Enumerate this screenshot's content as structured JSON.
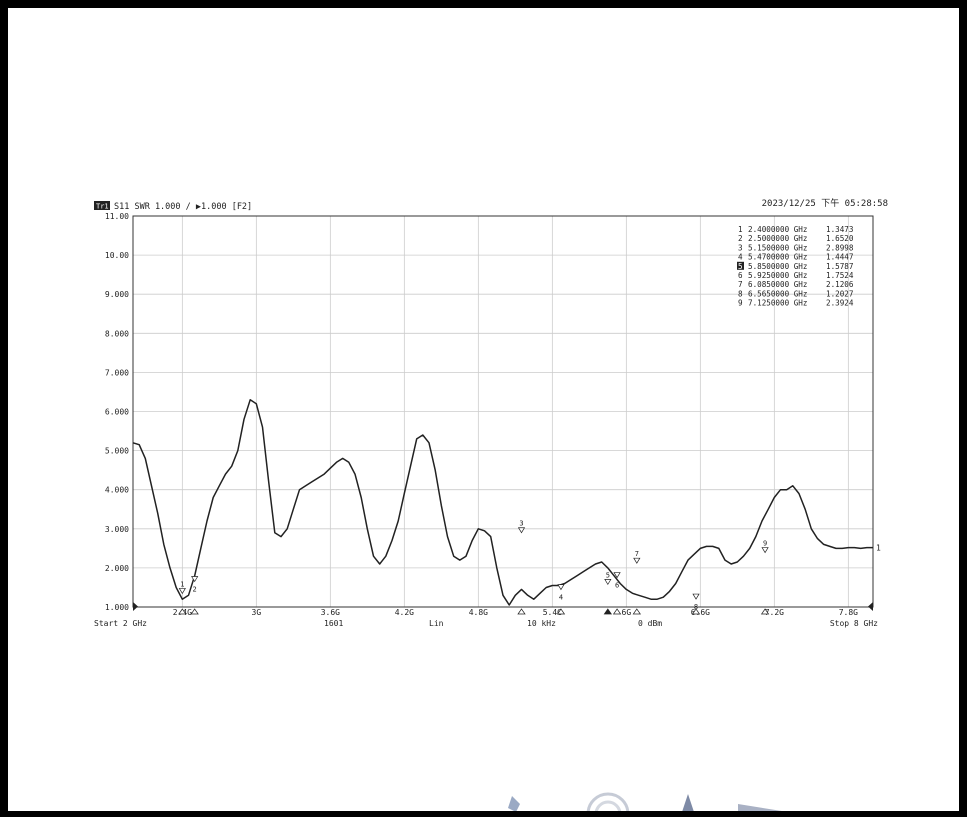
{
  "timestamp": "2023/12/25 下午 05:28:58",
  "header": {
    "trace_badge": "Tr1",
    "text": "S11  SWR 1.000 / ▶1.000  [F2]"
  },
  "footer": {
    "start": "Start 2 GHz",
    "points": "1601",
    "scale": "Lin",
    "ifbw": "10 kHz",
    "power": "0 dBm",
    "stop": "Stop 8 GHz"
  },
  "chart_data": {
    "type": "line",
    "ylim": [
      1.0,
      11.0
    ],
    "xlim": [
      2.0,
      8.0
    ],
    "grid": true,
    "ytick_values": [
      11,
      10,
      9,
      8,
      7,
      6,
      5,
      4,
      3,
      2,
      1
    ],
    "ytick_labels": [
      "11.00",
      "10.00",
      "9.000",
      "8.000",
      "7.000",
      "6.000",
      "5.000",
      "4.000",
      "3.000",
      "2.000",
      "1.000"
    ],
    "xtick_values": [
      2.4,
      3.0,
      3.6,
      4.2,
      4.8,
      5.4,
      6.0,
      6.6,
      7.2,
      7.8
    ],
    "xtick_labels": [
      "2.4G",
      "3G",
      "3.6G",
      "4.2G",
      "4.8G",
      "5.4G",
      "6G",
      "6.6G",
      "7.2G",
      "7.8G"
    ],
    "series": [
      {
        "x": [
          2.0,
          2.05,
          2.1,
          2.15,
          2.2,
          2.25,
          2.3,
          2.35,
          2.4,
          2.45,
          2.5,
          2.55,
          2.6,
          2.65,
          2.7,
          2.75,
          2.8,
          2.85,
          2.9,
          2.95,
          3.0,
          3.05,
          3.1,
          3.15,
          3.2,
          3.25,
          3.3,
          3.35,
          3.4,
          3.45,
          3.5,
          3.55,
          3.6,
          3.65,
          3.7,
          3.75,
          3.8,
          3.85,
          3.9,
          3.95,
          4.0,
          4.05,
          4.1,
          4.15,
          4.2,
          4.25,
          4.3,
          4.35,
          4.4,
          4.45,
          4.5,
          4.55,
          4.6,
          4.65,
          4.7,
          4.75,
          4.8,
          4.85,
          4.9,
          4.95,
          5.0,
          5.05,
          5.1,
          5.15,
          5.2,
          5.25,
          5.3,
          5.35,
          5.4,
          5.45,
          5.5,
          5.55,
          5.6,
          5.65,
          5.7,
          5.75,
          5.8,
          5.85,
          5.9,
          5.95,
          6.0,
          6.05,
          6.1,
          6.15,
          6.2,
          6.25,
          6.3,
          6.35,
          6.4,
          6.45,
          6.5,
          6.55,
          6.6,
          6.65,
          6.7,
          6.75,
          6.8,
          6.85,
          6.9,
          6.95,
          7.0,
          7.05,
          7.1,
          7.15,
          7.2,
          7.25,
          7.3,
          7.35,
          7.4,
          7.45,
          7.5,
          7.55,
          7.6,
          7.65,
          7.7,
          7.75,
          7.8,
          7.85,
          7.9,
          7.95,
          8.0
        ],
        "values": [
          5.2,
          5.15,
          4.8,
          4.1,
          3.4,
          2.6,
          2.0,
          1.5,
          1.2,
          1.3,
          1.8,
          2.5,
          3.2,
          3.8,
          4.1,
          4.4,
          4.6,
          5.0,
          5.8,
          6.3,
          6.2,
          5.6,
          4.2,
          2.9,
          2.8,
          3.0,
          3.5,
          4.0,
          4.1,
          4.2,
          4.3,
          4.4,
          4.55,
          4.7,
          4.8,
          4.7,
          4.4,
          3.8,
          3.0,
          2.3,
          2.1,
          2.3,
          2.7,
          3.2,
          3.9,
          4.6,
          5.3,
          5.4,
          5.2,
          4.5,
          3.6,
          2.8,
          2.3,
          2.2,
          2.3,
          2.7,
          3.0,
          2.95,
          2.8,
          2.0,
          1.3,
          1.05,
          1.3,
          1.45,
          1.3,
          1.2,
          1.35,
          1.5,
          1.55,
          1.55,
          1.6,
          1.7,
          1.8,
          1.9,
          2.0,
          2.1,
          2.15,
          2.0,
          1.8,
          1.6,
          1.45,
          1.35,
          1.3,
          1.25,
          1.2,
          1.2,
          1.25,
          1.4,
          1.6,
          1.9,
          2.2,
          2.35,
          2.5,
          2.55,
          2.55,
          2.5,
          2.2,
          2.1,
          2.15,
          2.3,
          2.5,
          2.8,
          3.2,
          3.5,
          3.8,
          4.0,
          4.0,
          4.1,
          3.9,
          3.5,
          3.0,
          2.75,
          2.6,
          2.55,
          2.5,
          2.5,
          2.52,
          2.52,
          2.5,
          2.52,
          2.52
        ]
      }
    ],
    "markers": [
      {
        "id": "1",
        "freq": "2.4000000 GHz",
        "value": "1.3473",
        "x": 2.4,
        "y": 1.3473
      },
      {
        "id": "2",
        "freq": "2.5000000 GHz",
        "value": "1.6520",
        "x": 2.5,
        "y": 1.652
      },
      {
        "id": "3",
        "freq": "5.1500000 GHz",
        "value": "2.8998",
        "x": 5.15,
        "y": 2.8998
      },
      {
        "id": "4",
        "freq": "5.4700000 GHz",
        "value": "1.4447",
        "x": 5.47,
        "y": 1.4447
      },
      {
        "id": "5",
        "freq": "5.8500000 GHz",
        "value": "1.5787",
        "x": 5.85,
        "y": 1.5787,
        "active": true
      },
      {
        "id": "6",
        "freq": "5.9250000 GHz",
        "value": "1.7524",
        "x": 5.925,
        "y": 1.7524
      },
      {
        "id": "7",
        "freq": "6.0850000 GHz",
        "value": "2.1206",
        "x": 6.085,
        "y": 2.1206
      },
      {
        "id": "8",
        "freq": "6.5650000 GHz",
        "value": "1.2027",
        "x": 6.565,
        "y": 1.2027
      },
      {
        "id": "9",
        "freq": "7.1250000 GHz",
        "value": "2.3924",
        "x": 7.125,
        "y": 2.3924
      }
    ],
    "marker_unit": "GHz",
    "trace_end_label": "1",
    "colors": {
      "trace": "#222222",
      "grid": "#cccccc",
      "frame": "#333333"
    }
  }
}
